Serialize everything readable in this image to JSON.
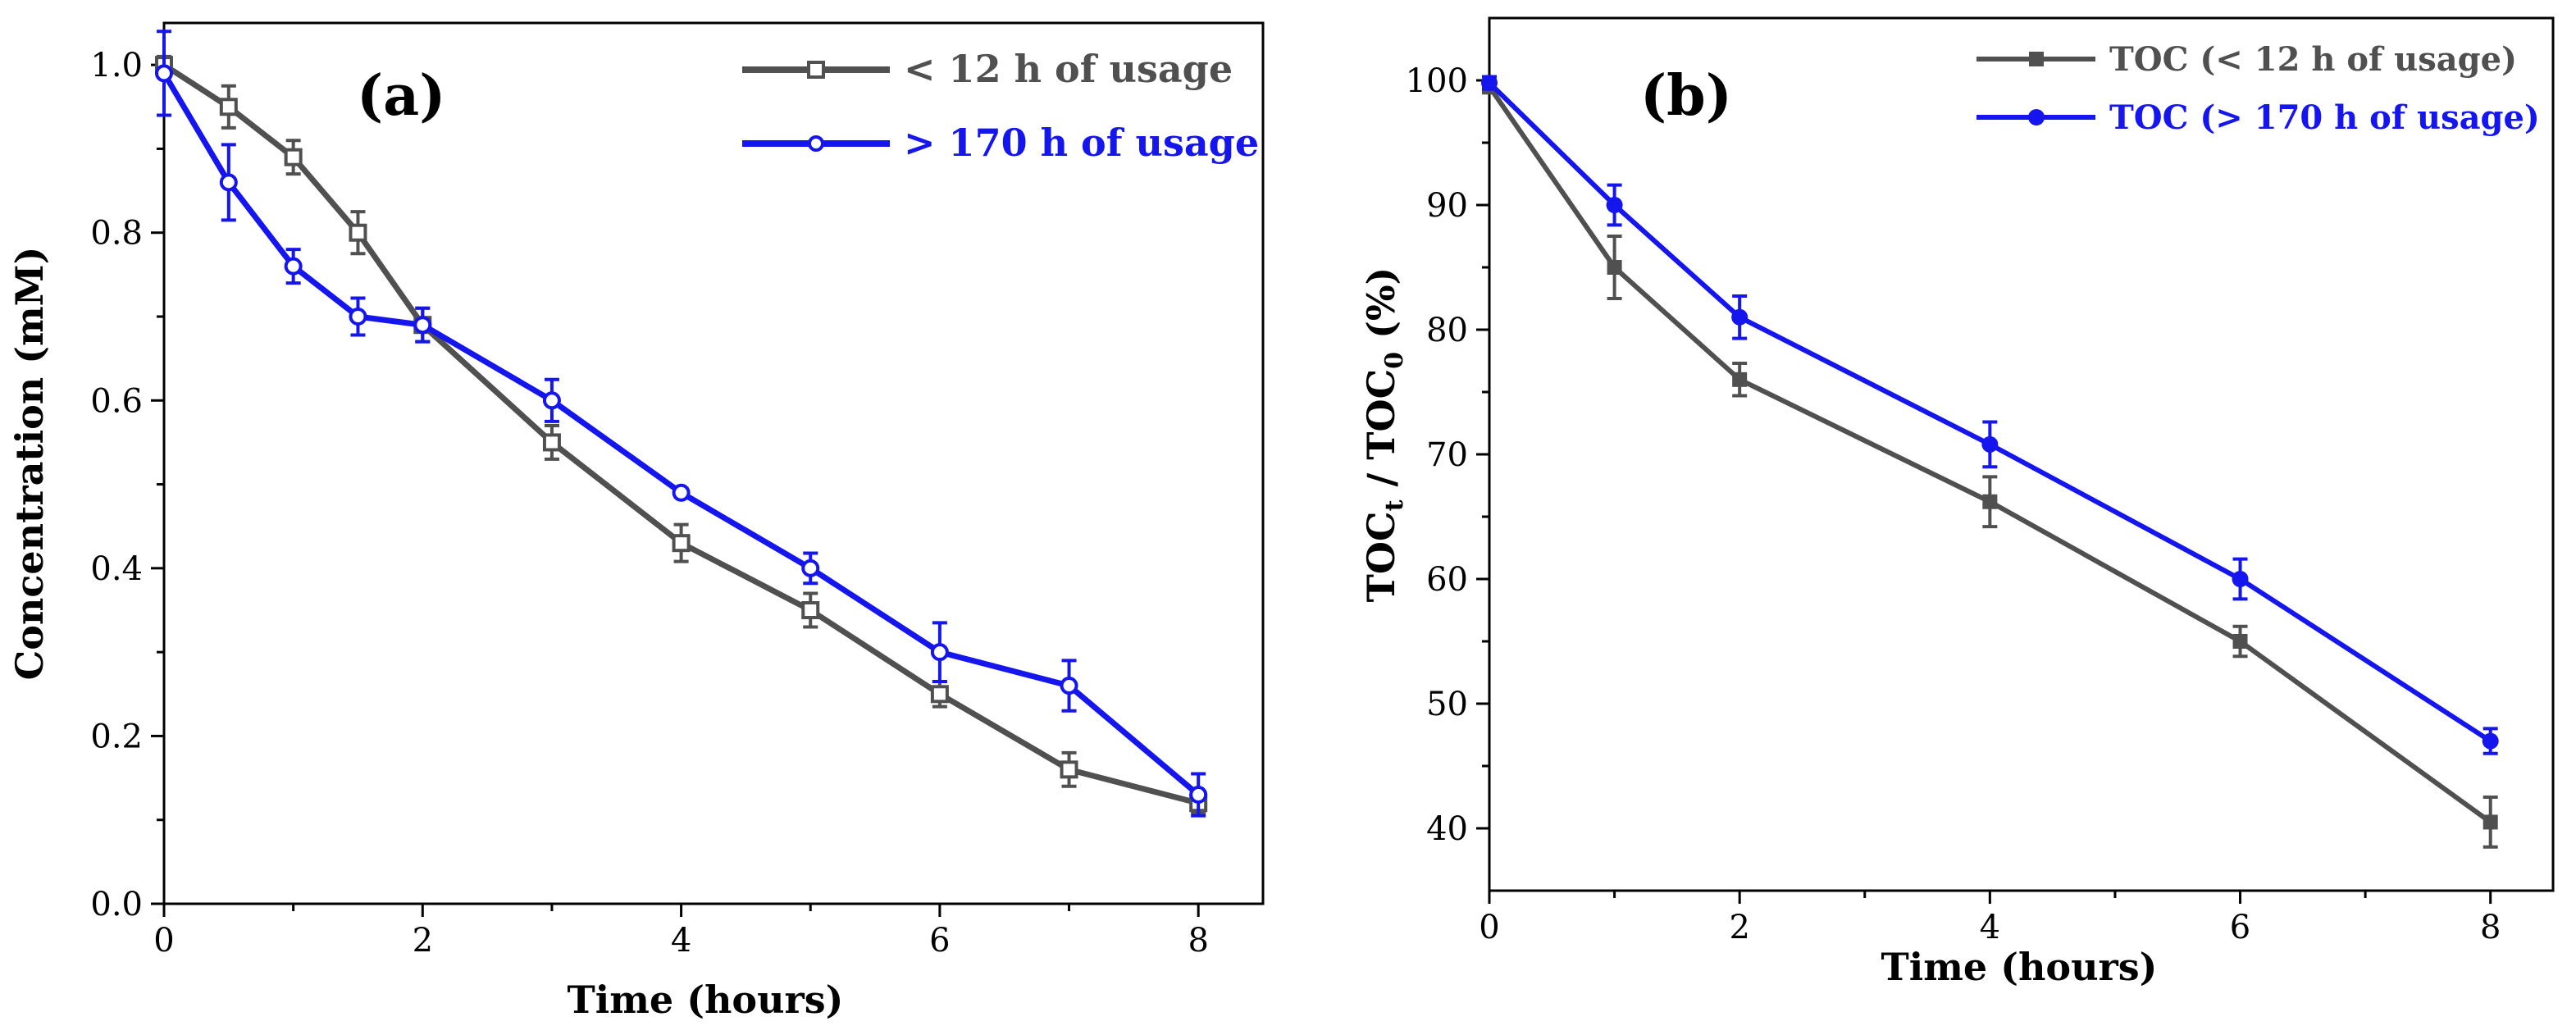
{
  "colors": {
    "gray": "#505050",
    "blue": "#1515ee"
  },
  "chart_data": [
    {
      "type": "line",
      "panel_label": "(a)",
      "xlabel": "Time (hours)",
      "ylabel": "Concentration (mM)",
      "xlim": [
        0,
        8.5
      ],
      "ylim": [
        0,
        1.05
      ],
      "xticks": [
        0,
        2,
        4,
        6,
        8
      ],
      "xtick_labels": [
        "0",
        "2",
        "4",
        "6",
        "8"
      ],
      "yticks": [
        0.0,
        0.2,
        0.4,
        0.6,
        0.8,
        1.0
      ],
      "ytick_labels": [
        "0.0",
        "0.2",
        "0.4",
        "0.6",
        "0.8",
        "1.0"
      ],
      "legend_position": "top-right",
      "series": [
        {
          "name": "< 12 h of usage",
          "color": "gray",
          "marker": "open-square",
          "x": [
            0,
            0.5,
            1,
            1.5,
            2,
            3,
            4,
            5,
            6,
            7,
            8
          ],
          "y": [
            1.0,
            0.95,
            0.89,
            0.8,
            0.69,
            0.55,
            0.43,
            0.35,
            0.25,
            0.16,
            0.12
          ],
          "err": [
            0.01,
            0.025,
            0.02,
            0.025,
            0.02,
            0.02,
            0.022,
            0.02,
            0.015,
            0.02,
            0.012
          ]
        },
        {
          "name": "> 170 h of usage",
          "color": "blue",
          "marker": "open-circle",
          "x": [
            0,
            0.5,
            1,
            1.5,
            2,
            3,
            4,
            5,
            6,
            7,
            8
          ],
          "y": [
            0.99,
            0.86,
            0.76,
            0.7,
            0.69,
            0.6,
            0.49,
            0.4,
            0.3,
            0.26,
            0.13
          ],
          "err": [
            0.05,
            0.045,
            0.02,
            0.022,
            0.02,
            0.025,
            0.005,
            0.018,
            0.035,
            0.03,
            0.025
          ]
        }
      ]
    },
    {
      "type": "line",
      "panel_label": "(b)",
      "xlabel": "Time (hours)",
      "ylabel_main": "TOC",
      "ylabel_sub1": "t",
      "ylabel_mid": " / TOC",
      "ylabel_sub2": "0",
      "ylabel_tail": " (%)",
      "xlim": [
        0,
        8.5
      ],
      "ylim": [
        35,
        105
      ],
      "xticks": [
        0,
        2,
        4,
        6,
        8
      ],
      "xtick_labels": [
        "0",
        "2",
        "4",
        "6",
        "8"
      ],
      "yticks": [
        40,
        50,
        60,
        70,
        80,
        90,
        100
      ],
      "ytick_labels": [
        "40",
        "50",
        "60",
        "70",
        "80",
        "90",
        "100"
      ],
      "legend_position": "top-right",
      "series": [
        {
          "name": "TOC (< 12 h of usage)",
          "color": "gray",
          "marker": "filled-square",
          "x": [
            0,
            1,
            2,
            4,
            6,
            8
          ],
          "y": [
            99.5,
            85.0,
            76.0,
            66.2,
            55.0,
            40.5
          ],
          "err": [
            0.5,
            2.5,
            1.3,
            2.0,
            1.2,
            2.0
          ]
        },
        {
          "name": "TOC (> 170 h of usage)",
          "color": "blue",
          "marker": "filled-circle",
          "x": [
            0,
            1,
            2,
            4,
            6,
            8
          ],
          "y": [
            99.8,
            90.0,
            81.0,
            70.8,
            60.0,
            47.0
          ],
          "err": [
            0.5,
            1.6,
            1.7,
            1.8,
            1.6,
            1.0
          ]
        }
      ]
    }
  ]
}
